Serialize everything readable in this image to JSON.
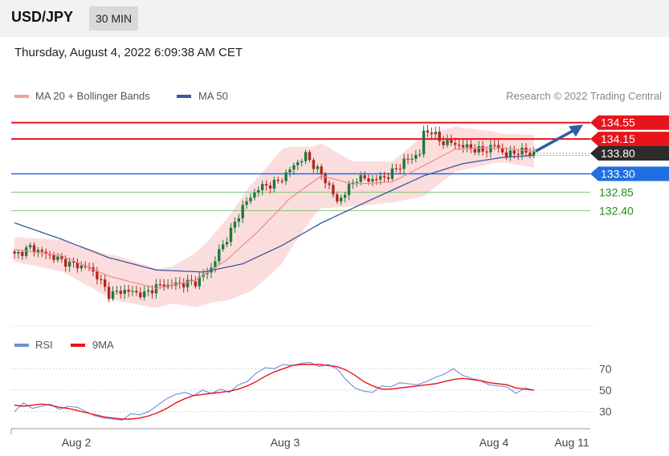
{
  "header": {
    "symbol": "USD/JPY",
    "timeframe": "30 MIN"
  },
  "timestamp": "Thursday, August 4, 2022 6:09:38 AM CET",
  "legend": {
    "ma20": "MA 20 + Bollinger Bands",
    "ma50": "MA 50",
    "rsi": "RSI",
    "rsi_ma": "9MA"
  },
  "credit": "Research © 2022 Trading Central",
  "colors": {
    "up": "#1e7a3c",
    "down": "#b0281e",
    "ma20": "#f08a8a",
    "ma50": "#3a5a9c",
    "bands": "#fbd7d7",
    "resistance": "#e8141c",
    "support": "#1f6fe0",
    "support_minor": "#7cc47c",
    "rsi": "#6d8fdc",
    "rsi_ma": "#e8141c",
    "arrow": "#2f5fa5"
  },
  "chart_data": [
    {
      "type": "candlestick",
      "title": "USD/JPY 30 MIN",
      "ylim": [
        129.7,
        134.8
      ],
      "x_tick_labels": [
        "Aug 2",
        "Aug 3",
        "Aug 4",
        "Aug 11"
      ],
      "last_price": "133.80",
      "levels": [
        {
          "value": 134.55,
          "label": "134.55",
          "kind": "resistance"
        },
        {
          "value": 134.15,
          "label": "134.15",
          "kind": "resistance"
        },
        {
          "value": 133.3,
          "label": "133.30",
          "kind": "support"
        },
        {
          "value": 132.85,
          "label": "132.85",
          "kind": "support-minor"
        },
        {
          "value": 132.4,
          "label": "132.40",
          "kind": "support-minor"
        }
      ],
      "forecast": "up",
      "close_profile": [
        [
          0,
          131.3
        ],
        [
          4,
          131.5
        ],
        [
          9,
          131.3
        ],
        [
          14,
          131.1
        ],
        [
          19,
          131.0
        ],
        [
          21,
          130.8
        ],
        [
          24,
          130.35
        ],
        [
          28,
          130.45
        ],
        [
          33,
          130.35
        ],
        [
          36,
          130.55
        ],
        [
          41,
          130.6
        ],
        [
          46,
          130.65
        ],
        [
          50,
          131.0
        ],
        [
          52,
          131.4
        ],
        [
          55,
          131.9
        ],
        [
          58,
          132.5
        ],
        [
          62,
          132.95
        ],
        [
          67,
          133.1
        ],
        [
          71,
          133.5
        ],
        [
          74,
          133.75
        ],
        [
          77,
          133.4
        ],
        [
          80,
          133.0
        ],
        [
          82,
          132.6
        ],
        [
          84,
          132.85
        ],
        [
          87,
          133.2
        ],
        [
          91,
          133.15
        ],
        [
          95,
          133.25
        ],
        [
          99,
          133.6
        ],
        [
          103,
          133.8
        ],
        [
          104,
          134.3
        ],
        [
          106,
          134.35
        ],
        [
          108,
          134.1
        ],
        [
          111,
          134.05
        ],
        [
          115,
          133.95
        ],
        [
          119,
          133.85
        ],
        [
          122,
          134.0
        ],
        [
          125,
          133.75
        ],
        [
          128,
          133.85
        ],
        [
          132,
          133.8
        ]
      ],
      "ma20_profile": [
        [
          0,
          131.45
        ],
        [
          12,
          131.3
        ],
        [
          24,
          130.8
        ],
        [
          36,
          130.5
        ],
        [
          46,
          130.7
        ],
        [
          54,
          131.2
        ],
        [
          62,
          131.9
        ],
        [
          70,
          132.7
        ],
        [
          78,
          133.25
        ],
        [
          86,
          133.05
        ],
        [
          96,
          133.1
        ],
        [
          104,
          133.5
        ],
        [
          112,
          133.9
        ],
        [
          122,
          133.95
        ],
        [
          132,
          133.85
        ]
      ],
      "ma50_profile": [
        [
          0,
          132.1
        ],
        [
          12,
          131.7
        ],
        [
          24,
          131.25
        ],
        [
          36,
          130.95
        ],
        [
          48,
          130.9
        ],
        [
          58,
          131.1
        ],
        [
          68,
          131.55
        ],
        [
          78,
          132.1
        ],
        [
          88,
          132.55
        ],
        [
          96,
          132.9
        ],
        [
          104,
          133.25
        ],
        [
          114,
          133.55
        ],
        [
          124,
          133.7
        ],
        [
          132,
          133.75
        ]
      ],
      "band_width_profile": [
        [
          0,
          0.3
        ],
        [
          14,
          0.4
        ],
        [
          26,
          0.55
        ],
        [
          40,
          0.45
        ],
        [
          50,
          0.8
        ],
        [
          60,
          1.3
        ],
        [
          68,
          1.4
        ],
        [
          76,
          0.85
        ],
        [
          86,
          0.55
        ],
        [
          96,
          0.5
        ],
        [
          104,
          0.75
        ],
        [
          112,
          0.55
        ],
        [
          124,
          0.35
        ],
        [
          132,
          0.4
        ]
      ]
    },
    {
      "type": "line",
      "title": "RSI",
      "ylim": [
        20,
        80
      ],
      "y_tick_labels": [
        "70",
        "50",
        "30"
      ],
      "series": [
        {
          "name": "RSI",
          "values": [
            30,
            38,
            33,
            35,
            37,
            32,
            35,
            34,
            30,
            26,
            24,
            23,
            22,
            28,
            27,
            30,
            36,
            42,
            46,
            48,
            45,
            50,
            47,
            51,
            48,
            55,
            58,
            66,
            71,
            70,
            74,
            73,
            75,
            76,
            72,
            74,
            70,
            60,
            52,
            49,
            48,
            54,
            53,
            57,
            56,
            55,
            58,
            62,
            65,
            70,
            64,
            61,
            59,
            55,
            54,
            53,
            47,
            52,
            50
          ]
        },
        {
          "name": "9MA",
          "values": [
            36,
            35,
            36,
            37,
            36,
            34,
            33,
            31,
            29,
            27,
            25,
            24,
            23,
            23,
            24,
            26,
            29,
            33,
            38,
            42,
            45,
            46,
            47,
            48,
            49,
            51,
            54,
            58,
            63,
            67,
            70,
            73,
            74,
            74,
            74,
            73,
            72,
            69,
            64,
            58,
            54,
            51,
            51,
            52,
            53,
            54,
            55,
            56,
            58,
            60,
            61,
            60,
            59,
            57,
            56,
            55,
            52,
            51,
            50
          ]
        }
      ]
    }
  ]
}
